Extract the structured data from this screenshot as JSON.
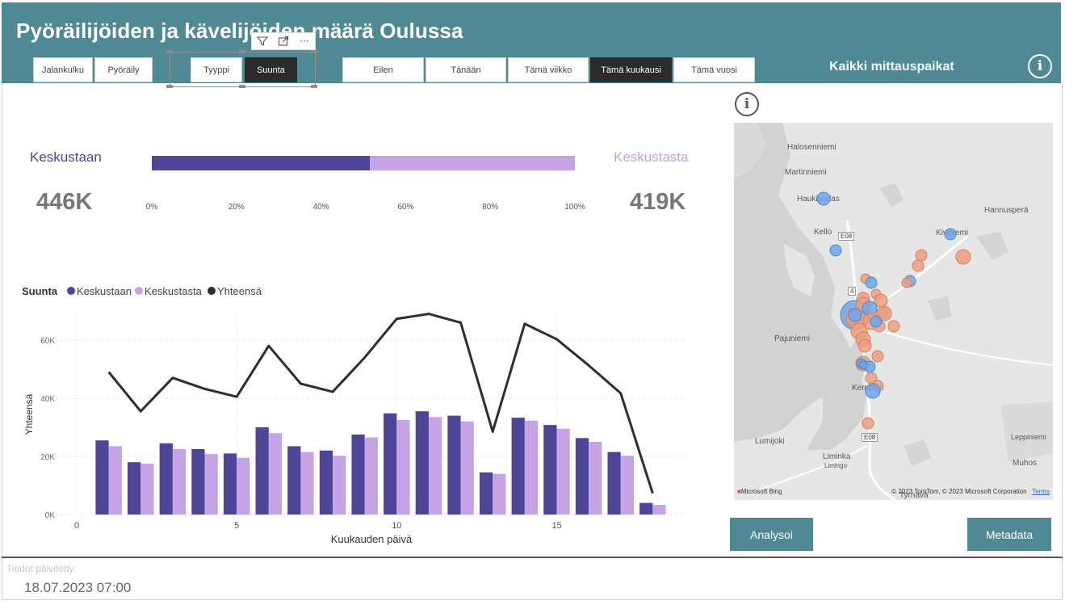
{
  "header": {
    "title": "Pyöräilijöiden ja kävelijöiden määrä Oulussa",
    "location_label": "Kaikki mittauspaikat",
    "info_icon": "info-icon"
  },
  "mode_slicer": [
    {
      "label": "Jalankulku",
      "selected": false
    },
    {
      "label": "Pyöräily",
      "selected": false
    }
  ],
  "view_slicer": [
    {
      "label": "Tyyppi",
      "selected": false
    },
    {
      "label": "Suunta",
      "selected": true
    }
  ],
  "period_slicer": [
    {
      "label": "Eilen",
      "selected": false
    },
    {
      "label": "Tänään",
      "selected": false
    },
    {
      "label": "Tämä viikko",
      "selected": false
    },
    {
      "label": "Tämä kuukausi",
      "selected": true
    },
    {
      "label": "Tämä vuosi",
      "selected": false
    }
  ],
  "visual_toolbar": {
    "filter_icon": "filter-icon",
    "focus_icon": "focus-mode-icon",
    "more_icon": "more-options-icon",
    "more_label": "···"
  },
  "kpi": {
    "left_label": "Keskustaan",
    "left_value": "446K",
    "right_label": "Keskustasta",
    "right_value": "419K",
    "colors": {
      "to_center": "#4e4596",
      "from_center": "#c4a4e4"
    }
  },
  "chart_data": [
    {
      "type": "bar",
      "orientation": "horizontal-stacked-100",
      "series": [
        {
          "name": "Keskustaan",
          "value": 446
        },
        {
          "name": "Keskustasta",
          "value": 419
        }
      ],
      "ticks": [
        "0%",
        "20%",
        "40%",
        "60%",
        "80%",
        "100%"
      ],
      "xlim": [
        0,
        100
      ]
    },
    {
      "type": "bar",
      "legend_title": "Suunta",
      "legend": [
        "Keskustaan",
        "Keskustasta",
        "Yhteensä"
      ],
      "legend_placement": "top-left",
      "xlabel": "Kuukauden päivä",
      "ylabel": "Yhteensä",
      "x": [
        1,
        2,
        3,
        4,
        5,
        6,
        7,
        8,
        9,
        10,
        11,
        12,
        13,
        14,
        15,
        16,
        17,
        18
      ],
      "xticks": [
        0,
        5,
        10,
        15
      ],
      "xtick_labels": [
        "0",
        "5",
        "10",
        "15"
      ],
      "yticks": [
        0,
        20000,
        40000,
        60000
      ],
      "ytick_labels": [
        "0K",
        "20K",
        "40K",
        "60K"
      ],
      "ylim": [
        0,
        70000
      ],
      "series": [
        {
          "name": "Keskustaan",
          "type": "bar",
          "color": "#4e4596",
          "values": [
            25500,
            18000,
            24500,
            22500,
            21000,
            30000,
            23500,
            22000,
            27500,
            34800,
            35500,
            34000,
            14500,
            33300,
            30800,
            26300,
            21500,
            4000
          ]
        },
        {
          "name": "Keskustasta",
          "type": "bar",
          "color": "#c4a4e4",
          "values": [
            23500,
            17500,
            22500,
            20800,
            19500,
            28000,
            21500,
            20200,
            26500,
            32500,
            33500,
            32000,
            14000,
            32300,
            29500,
            25000,
            20200,
            3300
          ]
        },
        {
          "name": "Yhteensä",
          "type": "line",
          "color": "#2e2e2e",
          "values": [
            49000,
            35500,
            47000,
            43200,
            40500,
            58000,
            45000,
            42200,
            54000,
            67300,
            69000,
            66000,
            28500,
            65600,
            60300,
            51300,
            41700,
            7300
          ]
        }
      ],
      "grid": true
    }
  ],
  "map": {
    "info_icon": "info-icon",
    "labels": [
      "Halosenniemi",
      "Martinniemi",
      "Haukipudas",
      "Kello",
      "Kiviniemi",
      "Hannusperä",
      "Pajuniemi",
      "Kempele",
      "Lumijoki",
      "Liminka",
      "Limingo",
      "Leppiniemi",
      "Muhos",
      "Tyrnävä"
    ],
    "road_labels": [
      "E08",
      "E08",
      "4"
    ],
    "attribution_left": "Microsoft Bing",
    "attribution_right": "© 2023 TomTom, © 2023 Microsoft Corporation",
    "terms_link": "Terms",
    "colors": {
      "to_center": "#6fa6e8",
      "from_center": "#eb9f7f",
      "water": "#d3d3d3",
      "land": "#e6e6e6"
    }
  },
  "actions": {
    "analyze": "Analysoi",
    "metadata": "Metadata"
  },
  "footer": {
    "updated_label": "Tiedot päivitetty:",
    "updated_value": "18.07.2023 07:00"
  }
}
